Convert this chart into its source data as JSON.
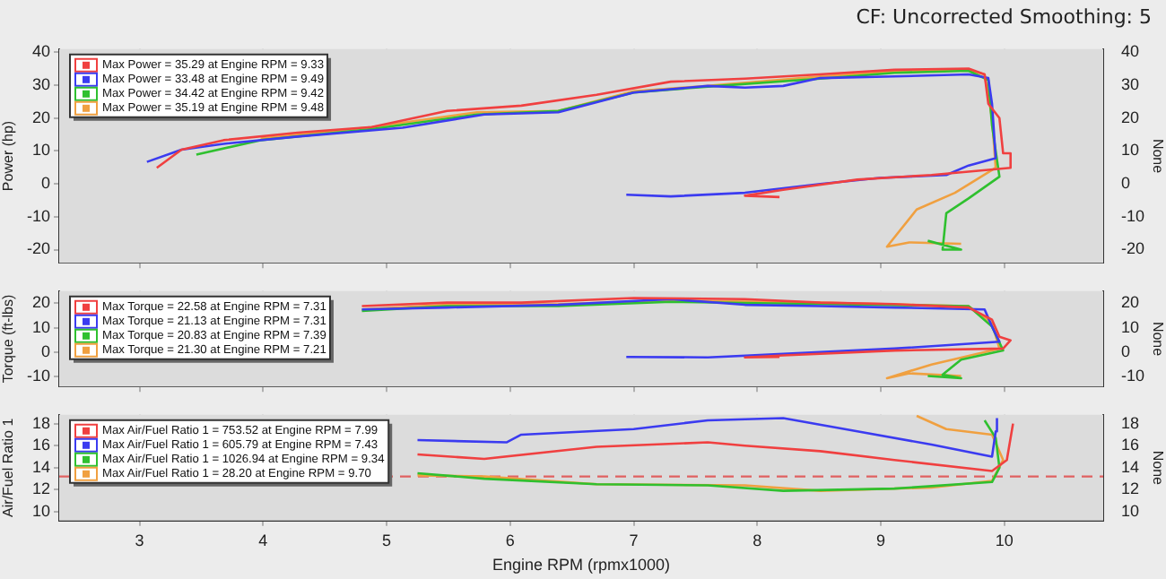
{
  "chart_data": [
    {
      "type": "line",
      "subtitle": "CF: Uncorrected Smoothing: 5",
      "ylabel": "Power (hp)",
      "y2label": "None",
      "xlim": [
        2.35,
        10.8
      ],
      "xticks": [
        3,
        4,
        5,
        6,
        7,
        8,
        9,
        10
      ],
      "ylim": [
        -24,
        41
      ],
      "yticks": [
        -20,
        -10,
        0,
        10,
        20,
        30,
        40
      ],
      "y2lim": [
        -24,
        41
      ],
      "y2ticks": [
        -20,
        -10,
        0,
        10,
        20,
        30,
        40
      ],
      "tick_labels": "y",
      "grid": true,
      "legend": "top left",
      "marker": "none",
      "line_style": "solid",
      "series": [
        {
          "name": "Max Power = 35.29 at Engine RPM = 9.33",
          "color": "#f04040",
          "x": [
            3.14,
            3.34,
            3.68,
            4.28,
            4.88,
            5.49,
            6.09,
            6.7,
            7.3,
            7.9,
            8.5,
            9.11,
            9.71,
            9.84,
            9.87,
            9.96,
            9.99,
            10.05,
            10.05,
            9.41,
            8.81,
            8.21,
            7.9,
            8.18
          ],
          "values": [
            4.9,
            10.4,
            13.3,
            15.6,
            17.3,
            22.2,
            23.8,
            27.1,
            31.1,
            32,
            33.3,
            34.7,
            35.1,
            33.3,
            24.4,
            20,
            9.3,
            9.3,
            4.9,
            2.7,
            1.3,
            -1.8,
            -3.6,
            -4
          ]
        },
        {
          "name": "Max Power = 33.48 at Engine RPM = 9.49",
          "color": "#3b3bf0",
          "x": [
            3.06,
            3.34,
            3.68,
            4.28,
            5.13,
            5.79,
            6.39,
            7,
            7.6,
            7.9,
            8.21,
            8.51,
            9.11,
            9.71,
            9.87,
            9.9,
            9.93,
            9.71,
            9.53,
            8.99,
            8.51,
            7.9,
            7.3,
            6.94
          ],
          "values": [
            6.7,
            10.4,
            12.2,
            14.4,
            17.1,
            21.1,
            21.8,
            27.8,
            29.8,
            29.3,
            29.8,
            32.2,
            32.7,
            33.3,
            32.2,
            24.4,
            7.8,
            5.6,
            2.7,
            1.8,
            0,
            -2.7,
            -3.8,
            -3.3
          ]
        },
        {
          "name": "Max Power = 34.42 at Engine RPM = 9.42",
          "color": "#2fc02f",
          "x": [
            3.46,
            3.98,
            4.88,
            5.73,
            6.39,
            7,
            7.6,
            8.51,
            9.11,
            9.71,
            9.87,
            9.9,
            9.96,
            9.71,
            9.53,
            9.5,
            9.65,
            9.38
          ],
          "values": [
            8.9,
            13.3,
            16.7,
            21.1,
            22.2,
            27.8,
            29.6,
            32,
            33.8,
            34.4,
            31.6,
            17.8,
            2.2,
            -4.4,
            -8.9,
            -20,
            -20,
            -17.3
          ]
        },
        {
          "name": "Max Power = 35.19 at Engine RPM = 9.48",
          "color": "#f0a040",
          "x": [
            3.98,
            4.88,
            5.73,
            6.39,
            7,
            7.6,
            8.51,
            9.11,
            9.71,
            9.84,
            9.9,
            9.93,
            9.6,
            9.29,
            9.05,
            9.23,
            9.65
          ],
          "values": [
            13.8,
            17.3,
            21.8,
            22.2,
            28.2,
            29.8,
            32.7,
            34.2,
            34.7,
            33.3,
            20,
            4.9,
            -2.7,
            -7.8,
            -19.1,
            -17.8,
            -18.2
          ]
        }
      ]
    },
    {
      "type": "line",
      "ylabel": "Torque (ft-lbs)",
      "y2label": "None",
      "xlim": [
        2.35,
        10.8
      ],
      "xticks": [
        3,
        4,
        5,
        6,
        7,
        8,
        9,
        10
      ],
      "ylim": [
        -14,
        25
      ],
      "yticks": [
        -10,
        0,
        10,
        20
      ],
      "y2lim": [
        -14,
        25
      ],
      "y2ticks": [
        -10,
        0,
        10,
        20
      ],
      "tick_labels": "y",
      "grid": true,
      "legend": "top left",
      "marker": "none",
      "line_style": "solid",
      "series": [
        {
          "name": "Max Torque = 22.58 at Engine RPM = 7.31",
          "color": "#f04040",
          "x": [
            4.8,
            5.49,
            6.09,
            7,
            7.9,
            8.51,
            9.11,
            9.71,
            9.9,
            9.96,
            10.05,
            9.99,
            9.11,
            8.21,
            7.9,
            8.18
          ],
          "values": [
            18.9,
            20.3,
            20.3,
            22.2,
            21.7,
            20.3,
            19.7,
            18.3,
            13.3,
            6.3,
            4.9,
            1.5,
            0.7,
            -1.3,
            -2.1,
            -1.9
          ]
        },
        {
          "name": "Max Torque = 21.13 at Engine RPM = 7.31",
          "color": "#3b3bf0",
          "x": [
            4.8,
            5.49,
            6.39,
            7.3,
            7.9,
            8.51,
            9.11,
            9.84,
            9.9,
            9.96,
            9.11,
            8.21,
            7.6,
            6.94
          ],
          "values": [
            17.5,
            18.3,
            19.4,
            21.7,
            19.4,
            18.9,
            18.3,
            17.5,
            10.5,
            4.3,
            1.5,
            -0.7,
            -2.1,
            -1.9
          ]
        },
        {
          "name": "Max Torque = 20.83 at Engine RPM = 7.39",
          "color": "#2fc02f",
          "x": [
            4.8,
            5.49,
            6.39,
            7.3,
            8.51,
            9.71,
            9.9,
            9.99,
            9.65,
            9.5,
            9.65,
            9.38
          ],
          "values": [
            16.9,
            18.9,
            18.9,
            20.6,
            19.7,
            18.9,
            10.5,
            0.7,
            -3,
            -9.2,
            -10.6,
            -9.7
          ]
        },
        {
          "name": "Max Torque = 21.30 at Engine RPM = 7.21",
          "color": "#f0a040",
          "x": [
            4.8,
            5.49,
            6.39,
            7.3,
            8.51,
            9.71,
            9.9,
            9.96,
            9.41,
            9.05,
            9.23,
            9.65
          ],
          "values": [
            17.5,
            19.4,
            19.7,
            21.1,
            20.3,
            18.9,
            11.9,
            1.5,
            -5,
            -10.6,
            -8.6,
            -9.7
          ]
        }
      ]
    },
    {
      "type": "line",
      "xlabel": "Engine RPM (rpmx1000)",
      "ylabel": "Air/Fuel Ratio 1",
      "y2label": "None",
      "xlim": [
        2.35,
        10.8
      ],
      "xticks": [
        3,
        4,
        5,
        6,
        7,
        8,
        9,
        10
      ],
      "ylim": [
        9.2,
        18.8
      ],
      "yticks": [
        10,
        12,
        14,
        16,
        18
      ],
      "y2lim": [
        9.2,
        18.8
      ],
      "y2ticks": [
        10,
        12,
        14,
        16,
        18
      ],
      "grid": true,
      "legend": "top left",
      "marker": "none",
      "line_style": "solid",
      "ref_lines": [
        {
          "axis": "y",
          "value": 13.2,
          "color": "#e06060",
          "line_style": "dashed"
        }
      ],
      "series": [
        {
          "name": "Max Air/Fuel Ratio 1 = 753.52 at Engine RPM = 7.99",
          "color": "#f04040",
          "x": [
            5.25,
            5.79,
            6.7,
            7.6,
            7.9,
            8.51,
            9.11,
            9.9,
            10.02,
            10.07
          ],
          "values": [
            15.2,
            14.8,
            15.9,
            16.3,
            16,
            15.5,
            14.7,
            13.7,
            14.7,
            18
          ]
        },
        {
          "name": "Max Air/Fuel Ratio 1 = 605.79 at Engine RPM = 7.43",
          "color": "#3b3bf0",
          "x": [
            5.25,
            5.97,
            6.09,
            7,
            7.6,
            8.21,
            8.81,
            9.41,
            9.9,
            9.93,
            9.94
          ],
          "values": [
            16.5,
            16.3,
            17,
            17.5,
            18.3,
            18.5,
            17.3,
            16.1,
            15,
            17.3,
            18.5
          ]
        },
        {
          "name": "Max Air/Fuel Ratio 1 = 1026.94 at Engine RPM = 9.34",
          "color": "#2fc02f",
          "x": [
            5.25,
            5.79,
            6.7,
            7.6,
            8.21,
            9.11,
            9.9,
            9.96,
            9.93,
            9.84
          ],
          "values": [
            13.5,
            13,
            12.5,
            12.4,
            11.9,
            12.1,
            12.7,
            14,
            16.7,
            18.3
          ]
        },
        {
          "name": "Max Air/Fuel Ratio 1 = 28.20 at Engine RPM = 9.70",
          "color": "#f0a040",
          "x": [
            5.25,
            5.79,
            6.7,
            7.9,
            8.51,
            9.41,
            9.9,
            9.99,
            9.9,
            9.53,
            9.29
          ],
          "values": [
            13.3,
            13.2,
            12.5,
            12.4,
            11.9,
            12.2,
            12.8,
            14.7,
            17,
            17.5,
            18.7
          ]
        }
      ]
    }
  ]
}
